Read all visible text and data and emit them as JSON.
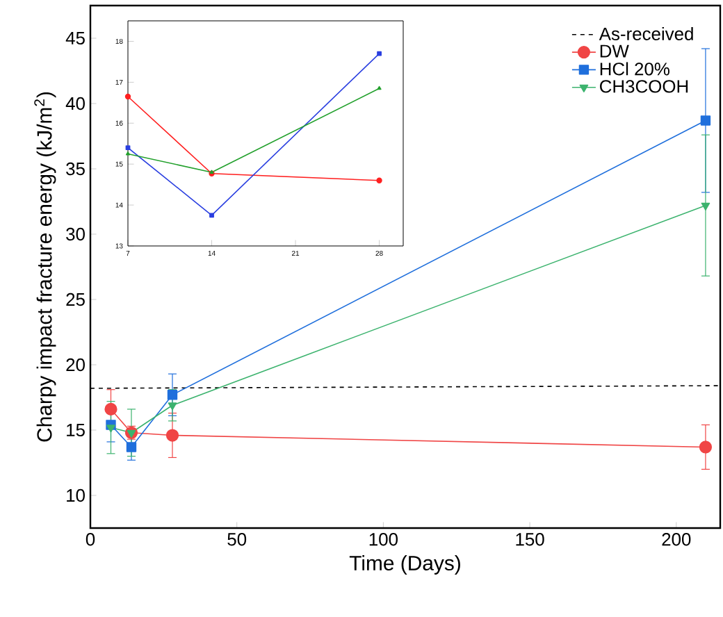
{
  "chart_data": [
    {
      "type": "line",
      "xlabel": "Time (Days)",
      "ylabel": "Charpy impact fracture energy (kJ/m$^{2}$)",
      "xlim": [
        0,
        215
      ],
      "xticks": [
        0,
        50,
        100,
        150,
        200
      ],
      "ylim": [
        7.5,
        47.5
      ],
      "yticks": [
        10,
        15,
        20,
        25,
        30,
        35,
        40,
        45
      ],
      "grid": false,
      "legend": "top right",
      "series": [
        {
          "name": "As-received",
          "color": "#000000",
          "x": [
            0,
            215
          ],
          "values": [
            18.2,
            18.4
          ],
          "line_style": "dashed",
          "marker": "none"
        },
        {
          "name": "DW",
          "color": "#f04545",
          "x": [
            7,
            14,
            28,
            210
          ],
          "values": [
            16.6,
            14.8,
            14.6,
            13.7
          ],
          "errors": [
            1.5,
            0.5,
            1.7,
            1.7
          ],
          "marker": "circle"
        },
        {
          "name": "HCl 20%",
          "color": "#1f6fdc",
          "x": [
            7,
            14,
            28,
            210
          ],
          "values": [
            15.4,
            13.7,
            17.7,
            38.7
          ],
          "errors": [
            1.3,
            1.0,
            1.6,
            5.5
          ],
          "marker": "square"
        },
        {
          "name": "CH3COOH",
          "color": "#3cb36e",
          "x": [
            7,
            14,
            28,
            210
          ],
          "values": [
            15.2,
            14.8,
            16.9,
            32.2
          ],
          "errors": [
            2.0,
            1.8,
            1.2,
            5.4
          ],
          "marker": "triangle down"
        }
      ]
    },
    {
      "type": "line",
      "xlim": [
        7,
        30
      ],
      "xticks": [
        7,
        14,
        21,
        28
      ],
      "ylim": [
        13,
        18.5
      ],
      "yticks": [
        13,
        14,
        15,
        16,
        17,
        18
      ],
      "grid": false,
      "series": [
        {
          "color": "#ff2020",
          "x": [
            7,
            14,
            28
          ],
          "values": [
            16.65,
            14.77,
            14.6
          ],
          "marker": "circle"
        },
        {
          "color": "#2a3fe0",
          "x": [
            7,
            14,
            28
          ],
          "values": [
            15.4,
            13.75,
            17.7
          ],
          "marker": "square"
        },
        {
          "color": "#22a02c",
          "x": [
            7,
            14,
            28
          ],
          "values": [
            15.25,
            14.8,
            16.85
          ],
          "marker": "triangle"
        }
      ]
    }
  ]
}
